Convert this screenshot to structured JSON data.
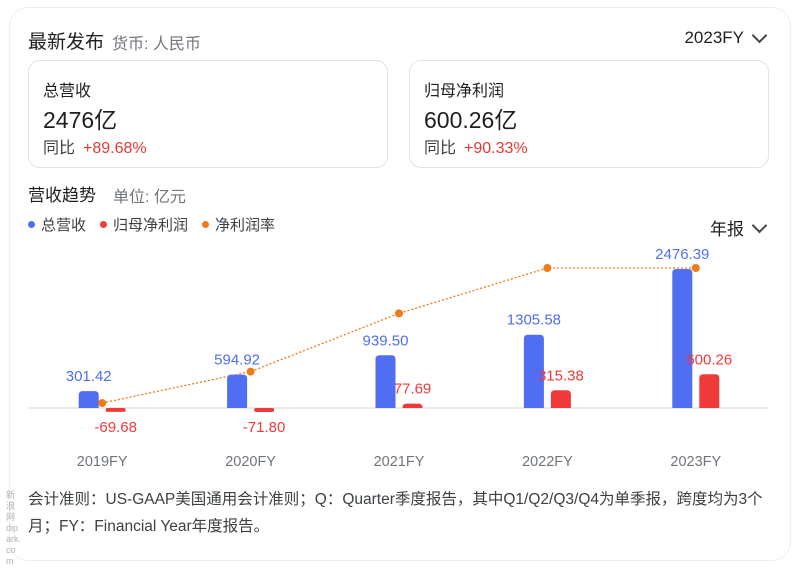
{
  "header": {
    "title": "最新发布",
    "currency": "货币: 人民币",
    "year_selector": "2023FY"
  },
  "cards": [
    {
      "label": "总营收",
      "value": "2476亿",
      "yoy_label": "同比",
      "yoy_value": "+89.68%"
    },
    {
      "label": "归母净利润",
      "value": "600.26亿",
      "yoy_label": "同比",
      "yoy_value": "+90.33%"
    }
  ],
  "trend": {
    "title": "营收趋势",
    "unit": "单位: 亿元",
    "period_selector": "年报"
  },
  "legend": [
    {
      "label": "总营收",
      "color": "#4f6ef2"
    },
    {
      "label": "归母净利润",
      "color": "#f03a3a"
    },
    {
      "label": "净利润率",
      "color": "#f07a1a"
    }
  ],
  "chart_data": {
    "type": "bar",
    "categories": [
      "2019FY",
      "2020FY",
      "2021FY",
      "2022FY",
      "2023FY"
    ],
    "series": [
      {
        "name": "总营收",
        "type": "bar",
        "color": "#4f6ef2",
        "values": [
          301.42,
          594.92,
          939.5,
          1305.58,
          2476.39
        ],
        "labels": [
          "301.42",
          "594.92",
          "939.50",
          "1305.58",
          "2476.39"
        ]
      },
      {
        "name": "归母净利润",
        "type": "bar",
        "color": "#f03a3a",
        "values": [
          -69.68,
          -71.8,
          77.69,
          315.38,
          600.26
        ],
        "labels": [
          "-69.68",
          "-71.80",
          "77.69",
          "315.38",
          "600.26"
        ]
      },
      {
        "name": "净利润率",
        "type": "line",
        "color": "#f07a1a",
        "values": [
          -23.1,
          -12.1,
          8.3,
          24.2,
          24.2
        ]
      }
    ]
  },
  "footnote": "会计准则：US-GAAP美国通用会计准则；Q：Quarter季度报告，其中Q1/Q2/Q3/Q4为单季报，跨度均为3个月；FY：Financial Year年度报告。",
  "watermark": "新浪网 dipark.com"
}
